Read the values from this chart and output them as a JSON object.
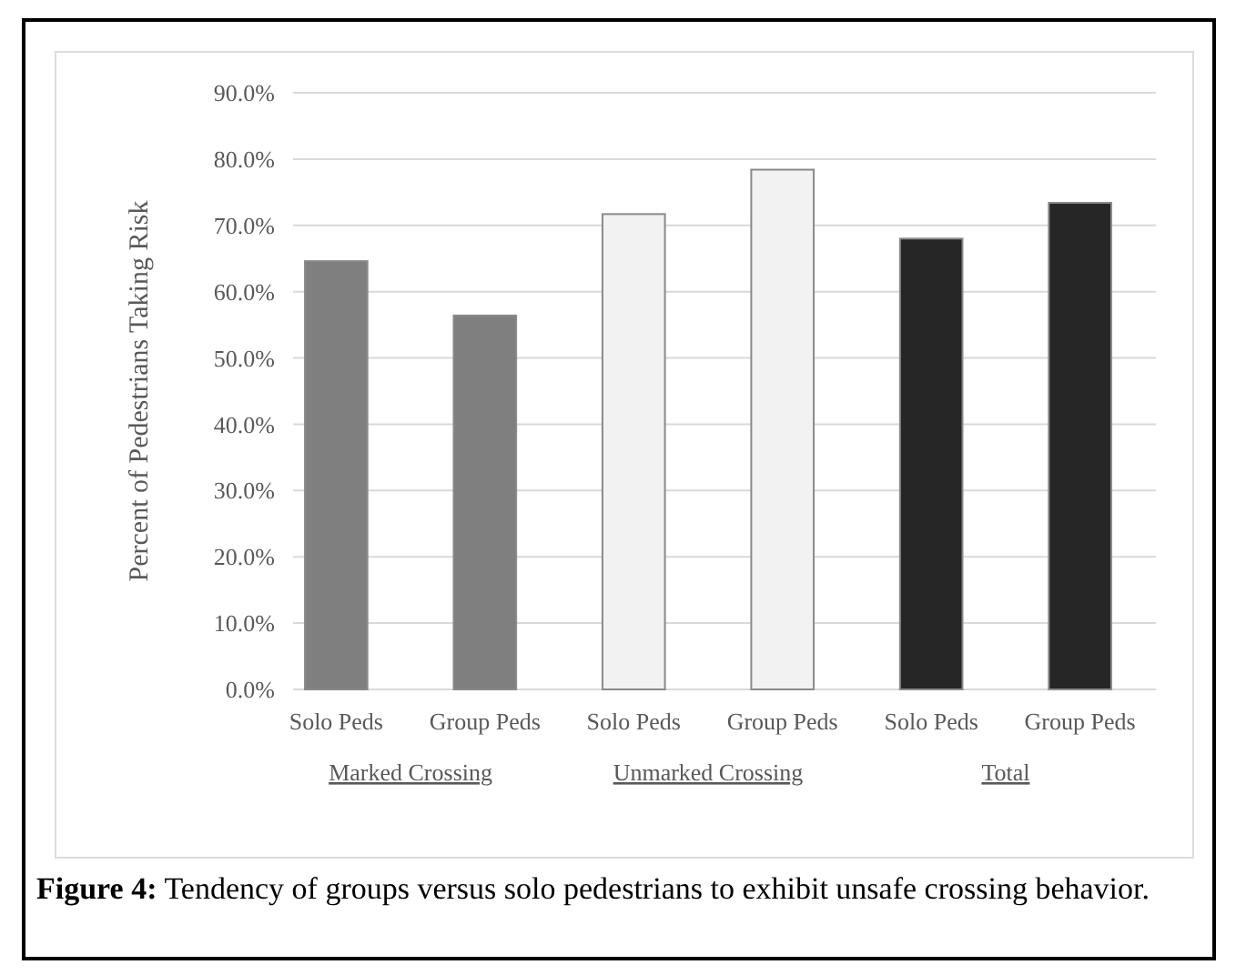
{
  "chart_data": {
    "type": "bar",
    "ylabel": "Percent of Pedestrians Taking Risk",
    "categories": [
      "Solo Peds",
      "Group Peds",
      "Solo Peds",
      "Group Peds",
      "Solo Peds",
      "Group Peds"
    ],
    "values": [
      64.6,
      56.4,
      71.7,
      78.4,
      68.0,
      73.4
    ],
    "colors": [
      "#7f7f7f",
      "#7f7f7f",
      "#f2f2f2",
      "#f2f2f2",
      "#262626",
      "#262626"
    ],
    "ylim": [
      0,
      90
    ],
    "yticks": [
      {
        "value": 0,
        "label": "0.0%"
      },
      {
        "value": 10,
        "label": "10.0%"
      },
      {
        "value": 20,
        "label": "20.0%"
      },
      {
        "value": 30,
        "label": "30.0%"
      },
      {
        "value": 40,
        "label": "40.0%"
      },
      {
        "value": 50,
        "label": "50.0%"
      },
      {
        "value": 60,
        "label": "60.0%"
      },
      {
        "value": 70,
        "label": "70.0%"
      },
      {
        "value": 80,
        "label": "80.0%"
      },
      {
        "value": 90,
        "label": "90.0%"
      }
    ],
    "grid": "y",
    "annotations": [
      "Marked Crossing",
      "Unmarked Crossing",
      "Total",
      "Figure 4: Tendency of groups versus solo pedestrians to exhibit unsafe crossing behavior."
    ]
  }
}
